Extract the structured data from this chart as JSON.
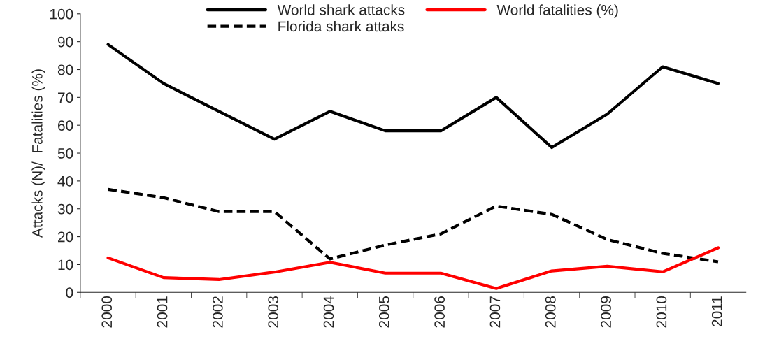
{
  "chart_data": {
    "type": "line",
    "ylabel": "Attacks (N)/  Fatalities (%)",
    "categories": [
      "2000",
      "2001",
      "2002",
      "2003",
      "2004",
      "2005",
      "2006",
      "2007",
      "2008",
      "2009",
      "2010",
      "2011"
    ],
    "series": [
      {
        "name": "World shark attacks",
        "color": "#000000",
        "line_style": "solid",
        "values": [
          89,
          75,
          65,
          55,
          65,
          58,
          58,
          70,
          52,
          64,
          81,
          75
        ]
      },
      {
        "name": "Florida shark attaks",
        "color": "#000000",
        "line_style": "dashed",
        "values": [
          37,
          34,
          29,
          29,
          12,
          17,
          21,
          31,
          28,
          19,
          14,
          11
        ]
      },
      {
        "name": "World fatalities (%)",
        "color": "#ff0000",
        "line_style": "solid",
        "values": [
          12.4,
          5.3,
          4.6,
          7.3,
          10.8,
          6.9,
          6.9,
          1.4,
          7.7,
          9.4,
          7.4,
          16
        ]
      }
    ],
    "ylim": [
      0,
      100
    ],
    "yticks": [
      0,
      10,
      20,
      30,
      40,
      50,
      60,
      70,
      80,
      90,
      100
    ],
    "grid": false,
    "legend": "top"
  }
}
